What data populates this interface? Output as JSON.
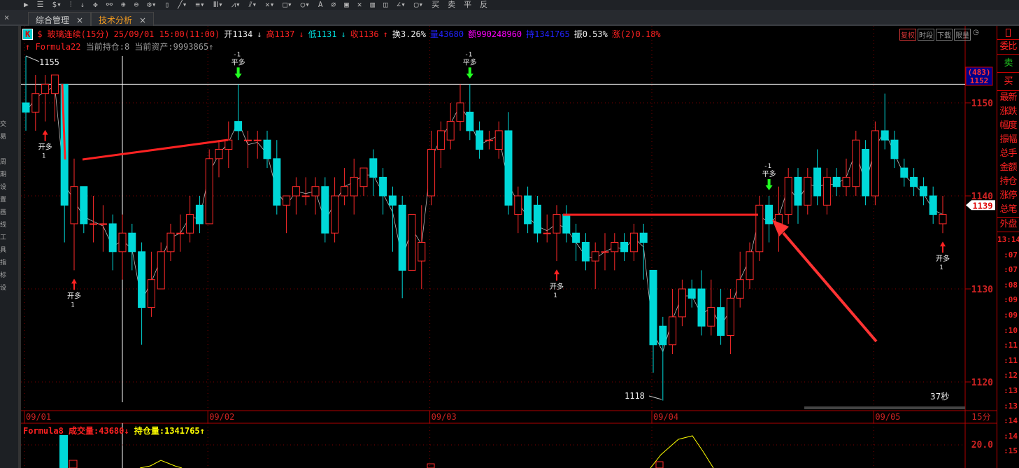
{
  "toolbar": {
    "right_tools": [
      "买",
      "卖",
      "平",
      "反"
    ]
  },
  "tabs": [
    {
      "label": "综合管理",
      "close": "×"
    },
    {
      "label": "技术分析",
      "close": "×"
    }
  ],
  "left_strip": [
    "交",
    "易",
    "",
    "周",
    "期",
    "设",
    "置",
    "画",
    "线",
    "工",
    "具",
    "指",
    "标",
    "设"
  ],
  "info": {
    "k_label": "K",
    "symbol": "$ 玻璃连续(15分)",
    "datetime": "25/09/01  15:00(11:00)",
    "open": "开1134",
    "high": "高1137",
    "low": "低1131",
    "close": "收1136",
    "turnover": "换3.26%",
    "volume": "量43680",
    "amount": "额990248960",
    "oi": "持1341765",
    "amplitude": "振0.53%",
    "change": "涨(2)0.18%"
  },
  "top_buttons": [
    "复权",
    "时段",
    "下载",
    "限量"
  ],
  "formula": {
    "name": "Formula22",
    "text": "当前持仓:8 当前资产:9993865"
  },
  "colors": {
    "up": "#ff2a2a",
    "down": "#00d8d8",
    "axis": "#b00000",
    "grid": "#800000",
    "volume_line": "#ffff00"
  },
  "chart_data": {
    "type": "candlestick",
    "period": "15分",
    "y_ticks": [
      1150,
      1140,
      1130,
      1120
    ],
    "ylim": [
      1117,
      1158
    ],
    "x_labels": [
      {
        "bar": 0,
        "label": "09/01"
      },
      {
        "bar": 19,
        "label": "09/02"
      },
      {
        "bar": 42,
        "label": "09/03"
      },
      {
        "bar": 65,
        "label": "09/04"
      },
      {
        "bar": 88,
        "label": "09/05"
      }
    ],
    "ohlc": [
      [
        1150,
        1155,
        1147,
        1149
      ],
      [
        1149,
        1153,
        1147,
        1151
      ],
      [
        1151,
        1153,
        1148,
        1152
      ],
      [
        1151,
        1153,
        1148,
        1153
      ],
      [
        1152,
        1152,
        1135,
        1139
      ],
      [
        1137,
        1144,
        1132,
        1141
      ],
      [
        1141,
        1141,
        1136,
        1137
      ],
      [
        1137,
        1140,
        1135,
        1137
      ],
      [
        1137,
        1139,
        1134,
        1137
      ],
      [
        1137,
        1138,
        1132,
        1134
      ],
      [
        1134,
        1138,
        1131,
        1136
      ],
      [
        1136,
        1137,
        1132,
        1134
      ],
      [
        1134,
        1135,
        1124,
        1128
      ],
      [
        1128,
        1134,
        1127,
        1131
      ],
      [
        1130,
        1135,
        1130,
        1134
      ],
      [
        1134,
        1137,
        1133,
        1136
      ],
      [
        1136,
        1138,
        1134,
        1136
      ],
      [
        1136,
        1140,
        1135,
        1138
      ],
      [
        1139,
        1140,
        1136,
        1137
      ],
      [
        1137,
        1145,
        1137,
        1144
      ],
      [
        1144,
        1146,
        1142,
        1145
      ],
      [
        1145,
        1148,
        1143,
        1146
      ],
      [
        1148,
        1152,
        1146,
        1147
      ],
      [
        1146,
        1147,
        1143,
        1146
      ],
      [
        1146,
        1147,
        1144,
        1146
      ],
      [
        1146,
        1147,
        1143,
        1144
      ],
      [
        1144,
        1146,
        1138,
        1139
      ],
      [
        1139,
        1140,
        1136,
        1140
      ],
      [
        1140,
        1142,
        1138,
        1141
      ],
      [
        1140,
        1142,
        1139,
        1140
      ],
      [
        1140,
        1142,
        1138,
        1141
      ],
      [
        1141,
        1142,
        1135,
        1136
      ],
      [
        1136,
        1142,
        1135,
        1140
      ],
      [
        1140,
        1143,
        1139,
        1141
      ],
      [
        1140,
        1144,
        1138,
        1142
      ],
      [
        1141,
        1143,
        1140,
        1143
      ],
      [
        1144,
        1145,
        1140,
        1142
      ],
      [
        1142,
        1143,
        1138,
        1140
      ],
      [
        1140,
        1141,
        1134,
        1139
      ],
      [
        1139,
        1140,
        1129,
        1132
      ],
      [
        1132,
        1138,
        1132,
        1138
      ],
      [
        1133,
        1139,
        1130,
        1135
      ],
      [
        1140,
        1147,
        1139,
        1145
      ],
      [
        1145,
        1148,
        1143,
        1147
      ],
      [
        1146,
        1150,
        1145,
        1148
      ],
      [
        1148,
        1152,
        1147,
        1150
      ],
      [
        1149,
        1152,
        1146,
        1147
      ],
      [
        1147,
        1148,
        1144,
        1145
      ],
      [
        1146,
        1147,
        1145,
        1146
      ],
      [
        1145,
        1148,
        1144,
        1147
      ],
      [
        1147,
        1149,
        1138,
        1139
      ],
      [
        1138,
        1141,
        1136,
        1140
      ],
      [
        1140,
        1141,
        1136,
        1137
      ],
      [
        1139,
        1140,
        1135,
        1136
      ],
      [
        1136,
        1138,
        1135,
        1136
      ],
      [
        1136,
        1139,
        1133,
        1138
      ],
      [
        1138,
        1139,
        1135,
        1136
      ],
      [
        1136,
        1137,
        1133,
        1135
      ],
      [
        1135,
        1136,
        1132,
        1133
      ],
      [
        1133,
        1135,
        1130,
        1134
      ],
      [
        1134,
        1136,
        1132,
        1134
      ],
      [
        1134,
        1136,
        1132,
        1135
      ],
      [
        1135,
        1136,
        1133,
        1134
      ],
      [
        1134,
        1137,
        1133,
        1136
      ],
      [
        1136,
        1137,
        1131,
        1135
      ],
      [
        1132,
        1132,
        1121,
        1124
      ],
      [
        1126,
        1127,
        1118,
        1124
      ],
      [
        1124,
        1130,
        1123,
        1127
      ],
      [
        1127,
        1131,
        1126,
        1130
      ],
      [
        1130,
        1131,
        1128,
        1129
      ],
      [
        1130,
        1132,
        1125,
        1126
      ],
      [
        1126,
        1131,
        1125,
        1128
      ],
      [
        1128,
        1130,
        1124,
        1125
      ],
      [
        1125,
        1130,
        1123,
        1129
      ],
      [
        1129,
        1134,
        1128,
        1131
      ],
      [
        1131,
        1135,
        1130,
        1134
      ],
      [
        1134,
        1140,
        1133,
        1139
      ],
      [
        1139,
        1140,
        1135,
        1137
      ],
      [
        1137,
        1141,
        1134,
        1138
      ],
      [
        1138,
        1143,
        1137,
        1142
      ],
      [
        1142,
        1143,
        1137,
        1139
      ],
      [
        1139,
        1143,
        1138,
        1142
      ],
      [
        1143,
        1145,
        1139,
        1140
      ],
      [
        1139,
        1143,
        1138,
        1142
      ],
      [
        1142,
        1143,
        1140,
        1141
      ],
      [
        1141,
        1144,
        1140,
        1142
      ],
      [
        1141,
        1147,
        1140,
        1146
      ],
      [
        1145,
        1146,
        1139,
        1140
      ],
      [
        1140,
        1148,
        1139,
        1147
      ],
      [
        1147,
        1151,
        1145,
        1146
      ],
      [
        1146,
        1147,
        1143,
        1144
      ],
      [
        1143,
        1144,
        1141,
        1142
      ],
      [
        1142,
        1143,
        1140,
        1141
      ],
      [
        1141,
        1142,
        1139,
        1140
      ],
      [
        1140,
        1141,
        1137,
        1138
      ],
      [
        1137,
        1140,
        1136,
        1138
      ]
    ],
    "signals": [
      {
        "bar": 2,
        "type": "开多",
        "qty": "1",
        "dir": "up"
      },
      {
        "bar": 5,
        "type": "开多",
        "qty": "1",
        "dir": "up"
      },
      {
        "bar": 22,
        "type": "平多",
        "qty": "-1",
        "dir": "down"
      },
      {
        "bar": 46,
        "type": "平多",
        "qty": "-1",
        "dir": "down"
      },
      {
        "bar": 55,
        "type": "开多",
        "qty": "1",
        "dir": "up"
      },
      {
        "bar": 77,
        "type": "平多",
        "qty": "-1",
        "dir": "down"
      },
      {
        "bar": 95,
        "type": "开多",
        "qty": "1",
        "dir": "up"
      }
    ],
    "high_label": "1155",
    "low_label": "1118",
    "reference_line": 1152,
    "ref_tag": {
      "count": "(483)",
      "price": "1152"
    },
    "last_price": "1139",
    "countdown": "37秒"
  },
  "sub_chart": {
    "name": "Formula8",
    "volume_label": "成交量:43680",
    "oi_label": "持仓量:1341765",
    "y_tick": "20.0"
  },
  "right_panel": {
    "labels": [
      "委比",
      "卖",
      "买",
      "最新",
      "涨跌",
      "幅度",
      "振幅",
      "总手",
      "金额",
      "持仓",
      "涨停",
      "总笔",
      "外盘"
    ],
    "times": [
      "13:14",
      ":07",
      ":07",
      ":08",
      ":09",
      ":09",
      ":10",
      ":11",
      ":11",
      ":12",
      ":13",
      ":13",
      ":14",
      ":14",
      ":15"
    ]
  }
}
